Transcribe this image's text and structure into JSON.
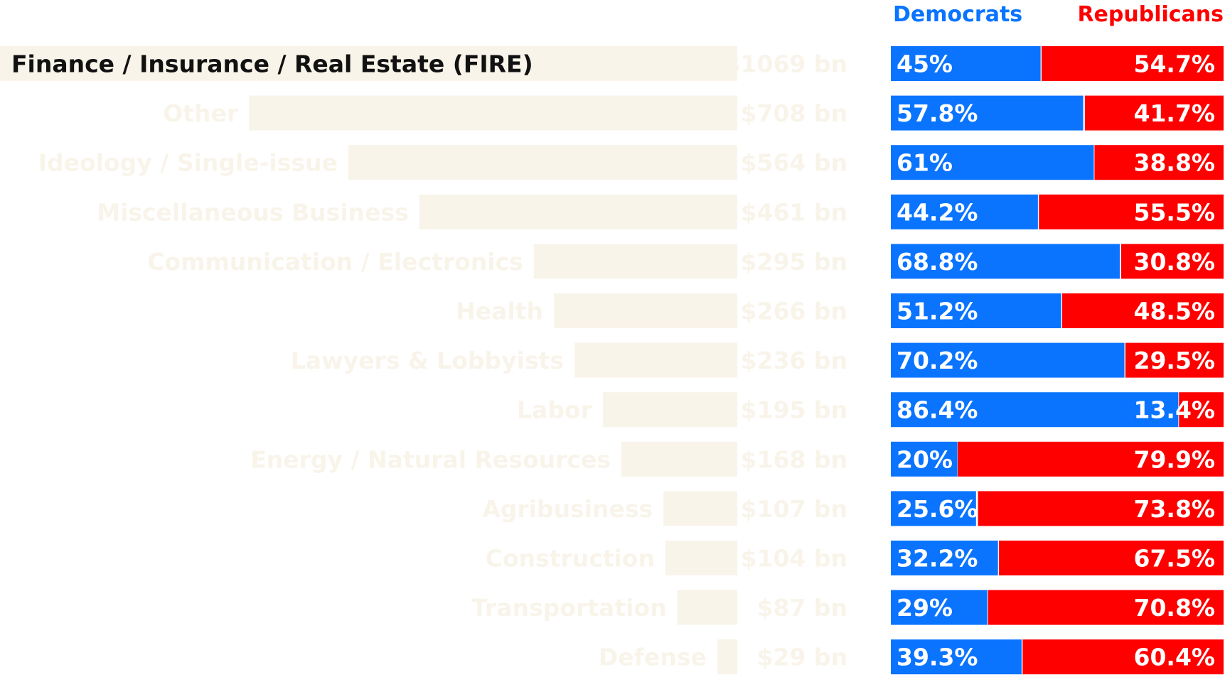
{
  "chart_data": {
    "type": "bar",
    "title": "",
    "highlighted_category": "Finance / Insurance / Real Estate (FIRE)",
    "colors": {
      "democrats": "#0a74ff",
      "republicans": "#ff0000",
      "bar_fill": "#f9f4ea",
      "label_faded": "#f9f4ea",
      "label_active": "#111111"
    },
    "legend": {
      "democrats": "Democrats",
      "republicans": "Republicans"
    },
    "categories": [
      "Finance / Insurance / Real Estate (FIRE)",
      "Other",
      "Ideology / Single-issue",
      "Miscellaneous Business",
      "Communication / Electronics",
      "Health",
      "Lawyers & Lobbyists",
      "Labor",
      "Energy / Natural Resources",
      "Agribusiness",
      "Construction",
      "Transportation",
      "Defense"
    ],
    "totals": [
      1069,
      708,
      564,
      461,
      295,
      266,
      236,
      195,
      168,
      107,
      104,
      87,
      29
    ],
    "total_labels": [
      "$1069 bn",
      "$708 bn",
      "$564 bn",
      "$461 bn",
      "$295 bn",
      "$266 bn",
      "$236 bn",
      "$195 bn",
      "$168 bn",
      "$107 bn",
      "$104 bn",
      "$87 bn",
      "$29 bn"
    ],
    "series": [
      {
        "name": "Democrats",
        "values": [
          45,
          57.8,
          61,
          44.2,
          68.8,
          51.2,
          70.2,
          86.4,
          20,
          25.6,
          32.2,
          29,
          39.3
        ],
        "labels": [
          "45%",
          "57.8%",
          "61%",
          "44.2%",
          "68.8%",
          "51.2%",
          "70.2%",
          "86.4%",
          "20%",
          "25.6%",
          "32.2%",
          "29%",
          "39.3%"
        ]
      },
      {
        "name": "Republicans",
        "values": [
          54.7,
          41.7,
          38.8,
          55.5,
          30.8,
          48.5,
          29.5,
          13.4,
          79.9,
          73.8,
          67.5,
          70.8,
          60.4
        ],
        "labels": [
          "54.7%",
          "41.7%",
          "38.8%",
          "55.5%",
          "30.8%",
          "48.5%",
          "29.5%",
          "13.4%",
          "79.9%",
          "73.8%",
          "67.5%",
          "70.8%",
          "60.4%"
        ]
      }
    ]
  }
}
